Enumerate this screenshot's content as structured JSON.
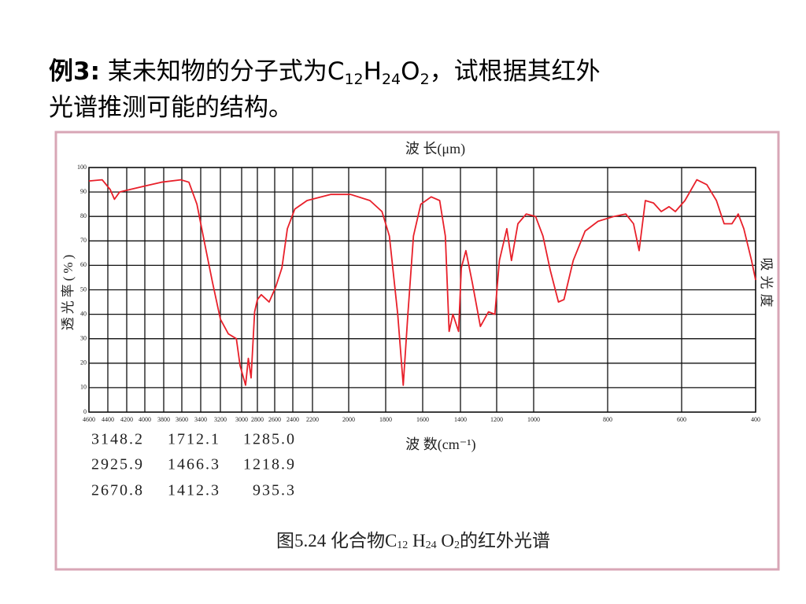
{
  "heading": {
    "parts": [
      "例3:",
      " 某未知物的分子式为C",
      "12",
      "H",
      "24",
      "O",
      "2",
      "，试根据其红外",
      "光谱推测可能的结构。"
    ]
  },
  "chart_data": {
    "type": "line",
    "top_axis_label": "波 长(μm)",
    "x_label": "波 数(cm⁻¹)",
    "y_label": "透光率(%)",
    "y2_label": "吸光度",
    "xlim": [
      4600,
      400
    ],
    "xticks": [
      4600,
      4400,
      4200,
      4000,
      3800,
      3600,
      3400,
      3200,
      3000,
      2800,
      2600,
      2400,
      2200,
      2000,
      1800,
      1600,
      1400,
      1200,
      1000,
      800,
      600,
      400
    ],
    "ylim": [
      0,
      100
    ],
    "yticks": [
      0,
      10,
      20,
      30,
      40,
      50,
      60,
      70,
      80,
      90,
      100
    ],
    "grid": true,
    "series": [
      {
        "color": "#e8202a",
        "x": [
          4600,
          4460,
          4375,
          4330,
          4275,
          4165,
          3990,
          3825,
          3610,
          3525,
          3440,
          3360,
          3280,
          3200,
          3125,
          3050,
          3015,
          2950,
          2915,
          2880,
          2835,
          2800,
          2755,
          2665,
          2590,
          2520,
          2460,
          2380,
          2255,
          2100,
          1990,
          1885,
          1820,
          1780,
          1735,
          1705,
          1680,
          1650,
          1610,
          1555,
          1510,
          1480,
          1460,
          1440,
          1410,
          1395,
          1370,
          1335,
          1290,
          1245,
          1210,
          1185,
          1145,
          1120,
          1085,
          1040,
          995,
          975,
          955,
          933,
          918,
          893,
          861,
          826,
          783,
          751,
          730,
          715,
          698,
          676,
          655,
          634,
          617,
          591,
          559,
          532,
          506,
          485,
          464,
          447,
          432,
          411,
          400
        ],
        "values": [
          94.5,
          95,
          91,
          87,
          90,
          91,
          92.5,
          94,
          95,
          94,
          85,
          69,
          53,
          38,
          32,
          30,
          19,
          11,
          22,
          14,
          41,
          46,
          48,
          45,
          51,
          59,
          75,
          83,
          86.5,
          89,
          89,
          86.5,
          82,
          72,
          40,
          11,
          40,
          72,
          85,
          88,
          86.5,
          72,
          33,
          40,
          33,
          59,
          66,
          53,
          35,
          41,
          40,
          62,
          75,
          62,
          77,
          81,
          80,
          72,
          58,
          45,
          46,
          62,
          74,
          78,
          80,
          81,
          77,
          66,
          86.5,
          85.5,
          82,
          84,
          82,
          86.5,
          95,
          93,
          86.5,
          77,
          77,
          81,
          75,
          62,
          54
        ]
      }
    ],
    "peaks": [
      [
        "3148.2",
        "1712.1",
        "1285.0"
      ],
      [
        "2925.9",
        "1466.3",
        "1218.9"
      ],
      [
        "2670.8",
        "1412.3",
        "935.3"
      ]
    ],
    "caption": [
      "图5.24 化合物C",
      "12",
      " H",
      "24",
      " O",
      "2",
      "的红外光谱"
    ]
  }
}
